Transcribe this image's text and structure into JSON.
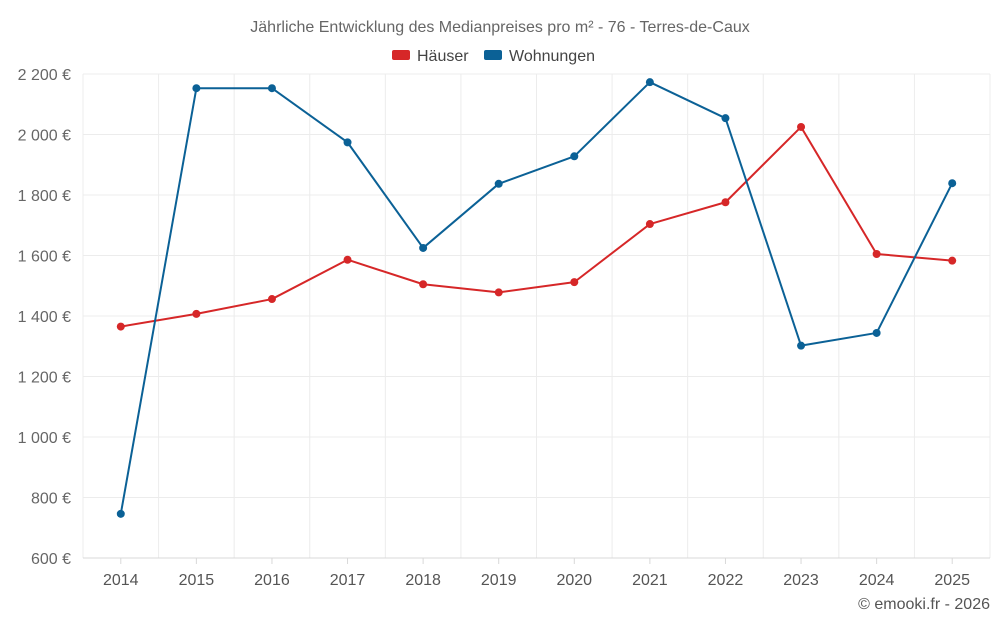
{
  "chart_data": {
    "type": "line",
    "title": "Jährliche Entwicklung des Medianpreises pro m² - 76 - Terres-de-Caux",
    "x": [
      "2014",
      "2015",
      "2016",
      "2017",
      "2018",
      "2019",
      "2020",
      "2021",
      "2022",
      "2023",
      "2024",
      "2025"
    ],
    "series": [
      {
        "name": "Häuser",
        "color": "#d62728",
        "values": [
          1365,
          1407,
          1456,
          1586,
          1505,
          1478,
          1512,
          1704,
          1776,
          2025,
          1605,
          1583
        ]
      },
      {
        "name": "Wohnungen",
        "color": "#0b6196",
        "values": [
          746,
          2153,
          2153,
          1974,
          1625,
          1837,
          1928,
          2173,
          2054,
          1302,
          1344,
          1839
        ]
      }
    ],
    "ylim": [
      600,
      2200
    ],
    "yticks": [
      600,
      800,
      1000,
      1200,
      1400,
      1600,
      1800,
      2000,
      2200
    ],
    "ytick_labels": [
      "600 €",
      "800 €",
      "1 000 €",
      "1 200 €",
      "1 400 €",
      "1 600 €",
      "1 800 €",
      "2 000 €",
      "2 200 €"
    ],
    "xlabel": "",
    "ylabel": "",
    "grid": true,
    "legend": "top-center"
  },
  "credit": "© emooki.fr - 2026"
}
